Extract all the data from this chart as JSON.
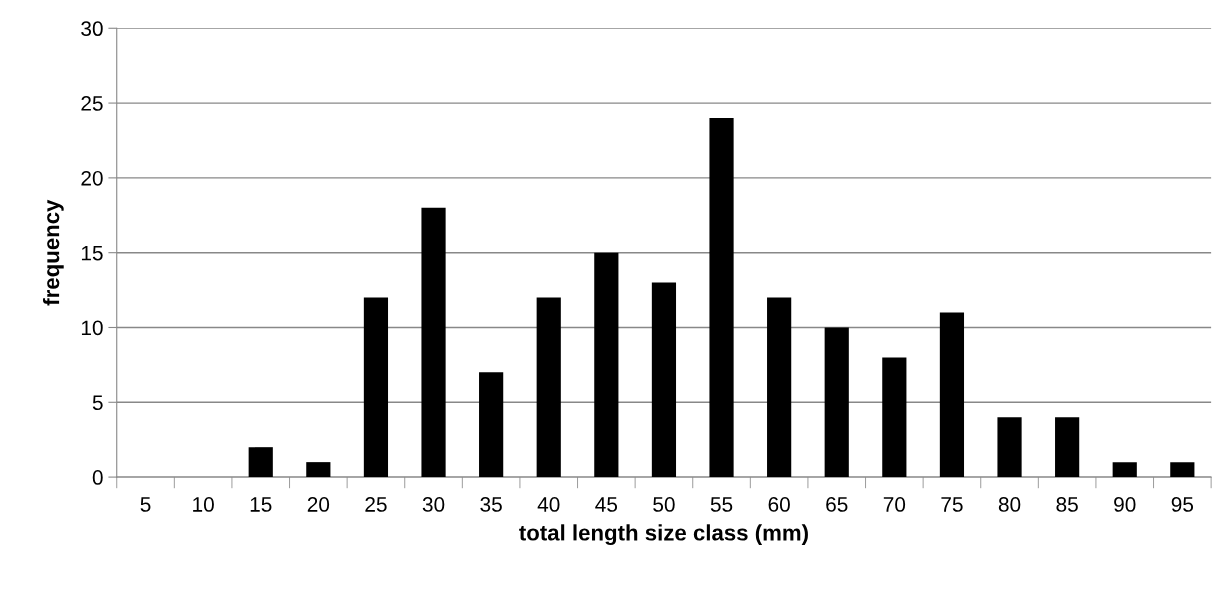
{
  "chart_data": {
    "type": "bar",
    "xlabel": "total length size class (mm)",
    "ylabel": "frequency",
    "categories": [
      "5",
      "10",
      "15",
      "20",
      "25",
      "30",
      "35",
      "40",
      "45",
      "50",
      "55",
      "60",
      "65",
      "70",
      "75",
      "80",
      "85",
      "90",
      "95"
    ],
    "values": [
      0,
      0,
      2,
      1,
      12,
      18,
      7,
      12,
      15,
      13,
      24,
      12,
      10,
      8,
      11,
      4,
      4,
      1,
      1
    ],
    "color": "#000000",
    "ylim": [
      0,
      30
    ],
    "yticks": [
      0,
      5,
      10,
      15,
      20,
      25,
      30
    ],
    "grid": "y",
    "legend": false
  }
}
